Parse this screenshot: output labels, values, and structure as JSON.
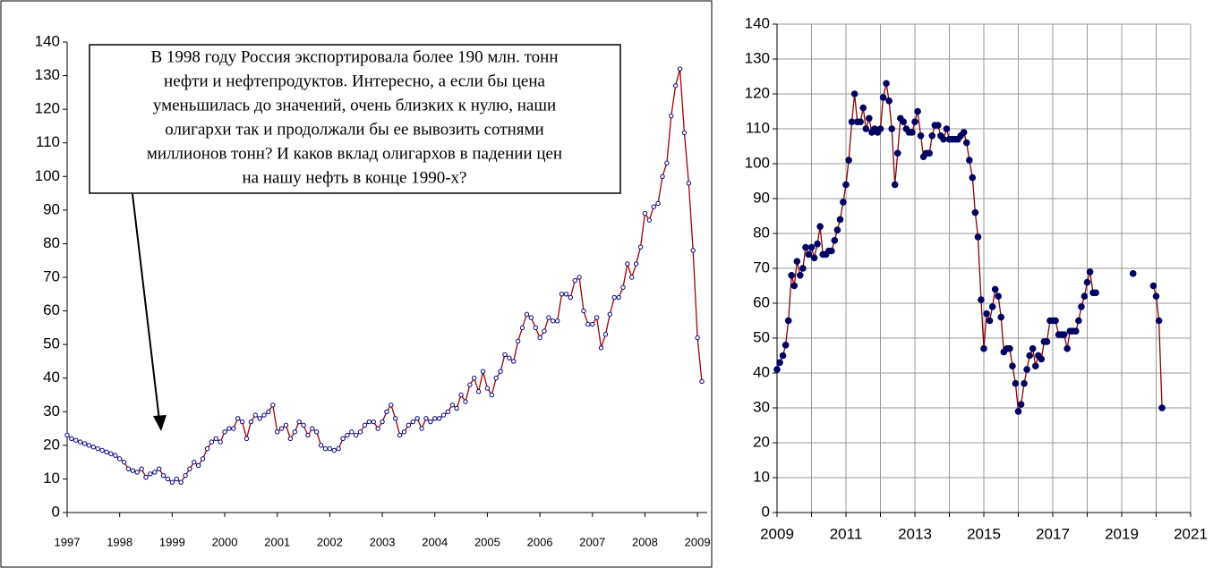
{
  "chart_data": [
    {
      "type": "line",
      "categories": [
        "1997",
        null,
        null,
        null,
        null,
        null,
        null,
        null,
        null,
        null,
        null,
        null,
        "1998",
        null,
        null,
        null,
        null,
        null,
        null,
        null,
        null,
        null,
        null,
        null,
        "1999",
        null,
        null,
        null,
        null,
        null,
        null,
        null,
        null,
        null,
        null,
        null,
        "2000",
        null,
        null,
        null,
        null,
        null,
        null,
        null,
        null,
        null,
        null,
        null,
        "2001",
        null,
        null,
        null,
        null,
        null,
        null,
        null,
        null,
        null,
        null,
        null,
        "2002",
        null,
        null,
        null,
        null,
        null,
        null,
        null,
        null,
        null,
        null,
        null,
        "2003",
        null,
        null,
        null,
        null,
        null,
        null,
        null,
        null,
        null,
        null,
        null,
        "2004",
        null,
        null,
        null,
        null,
        null,
        null,
        null,
        null,
        null,
        null,
        null,
        "2005",
        null,
        null,
        null,
        null,
        null,
        null,
        null,
        null,
        null,
        null,
        null,
        "2006",
        null,
        null,
        null,
        null,
        null,
        null,
        null,
        null,
        null,
        null,
        null,
        "2007",
        null,
        null,
        null,
        null,
        null,
        null,
        null,
        null,
        null,
        null,
        null,
        "2008",
        null,
        null,
        null,
        null,
        null,
        null,
        null,
        null,
        null,
        null,
        null,
        "2009",
        null
      ],
      "values": [
        23,
        22,
        21.5,
        21,
        20.5,
        20,
        19.5,
        19,
        18.5,
        18,
        17.5,
        17,
        16,
        15,
        13,
        12.5,
        12,
        13,
        10.5,
        11.5,
        12,
        13,
        11,
        10,
        9,
        10,
        9,
        11,
        13,
        15,
        14,
        16,
        19,
        21,
        22,
        21,
        24,
        25,
        25,
        28,
        27,
        22,
        27,
        29,
        28,
        29,
        30,
        32,
        24,
        25,
        26,
        22,
        24,
        27,
        26,
        23,
        25,
        24,
        20,
        19,
        19,
        18.5,
        19,
        22,
        23,
        24,
        23,
        24,
        26,
        27,
        27,
        25,
        27,
        30,
        32,
        28,
        23,
        24,
        26,
        27,
        28,
        25,
        28,
        27,
        28,
        28,
        29,
        30,
        32,
        31,
        35,
        33,
        38,
        40,
        36,
        42,
        37,
        35,
        40,
        42,
        47,
        46,
        45,
        51,
        55,
        59,
        58,
        55,
        52,
        54,
        58,
        57,
        57,
        65,
        65,
        64,
        69,
        70,
        60,
        56,
        56,
        58,
        49,
        53,
        59,
        64,
        64,
        67,
        74,
        70,
        74,
        79,
        89,
        87,
        91,
        92,
        100,
        104,
        118,
        127,
        132,
        113,
        98,
        78,
        52,
        39
      ],
      "color": "#a00000",
      "marker": "hollow",
      "marker_color": "#000080",
      "ylim": [
        0,
        140
      ],
      "yticks": [
        0,
        10,
        20,
        30,
        40,
        50,
        60,
        70,
        80,
        90,
        100,
        110,
        120,
        130,
        140
      ],
      "grid": false,
      "annotation": [
        "В 1998 году Россия экспортировала более 190 млн. тонн",
        "нефти и нефтепродуктов. Интересно, а если бы цена",
        "уменьшилась до значений, очень близких к нулю, наши",
        "олигархи так и продолжали бы ее вывозить сотнями",
        "миллионов тонн? И каков вклад олигархов в падении цен",
        "на нашу нефть в конце 1990-х?"
      ]
    },
    {
      "type": "line",
      "x": [
        2009.0,
        2009.08,
        2009.17,
        2009.25,
        2009.33,
        2009.42,
        2009.5,
        2009.58,
        2009.67,
        2009.75,
        2009.83,
        2009.92,
        2010.0,
        2010.08,
        2010.17,
        2010.25,
        2010.33,
        2010.42,
        2010.5,
        2010.58,
        2010.67,
        2010.75,
        2010.83,
        2010.92,
        2011.0,
        2011.08,
        2011.17,
        2011.25,
        2011.33,
        2011.42,
        2011.5,
        2011.58,
        2011.67,
        2011.75,
        2011.83,
        2011.92,
        2012.0,
        2012.08,
        2012.17,
        2012.25,
        2012.33,
        2012.42,
        2012.5,
        2012.58,
        2012.67,
        2012.75,
        2012.83,
        2012.92,
        2013.0,
        2013.08,
        2013.17,
        2013.25,
        2013.33,
        2013.42,
        2013.5,
        2013.58,
        2013.67,
        2013.75,
        2013.83,
        2013.92,
        2014.0,
        2014.08,
        2014.17,
        2014.25,
        2014.33,
        2014.42,
        2014.5,
        2014.58,
        2014.67,
        2014.75,
        2014.83,
        2014.92,
        2015.0,
        2015.08,
        2015.17,
        2015.25,
        2015.33,
        2015.42,
        2015.5,
        2015.58,
        2015.67,
        2015.75,
        2015.83,
        2015.92,
        2016.0,
        2016.08,
        2016.17,
        2016.25,
        2016.33,
        2016.42,
        2016.5,
        2016.58,
        2016.67,
        2016.75,
        2016.83,
        2016.92,
        2017.0,
        2017.08,
        2017.17,
        2017.25,
        2017.33,
        2017.42,
        2017.5,
        2017.58,
        2017.67,
        2017.75,
        2017.83,
        2017.92,
        2018.0,
        2018.08,
        2018.17,
        2018.25,
        2018.5,
        2019.33,
        2019.6,
        2019.92,
        2020.0,
        2020.08,
        2020.17
      ],
      "values": [
        41,
        43,
        45,
        48,
        55,
        68,
        65,
        72,
        68,
        70,
        76,
        74,
        76,
        73,
        77,
        82,
        74,
        74,
        75,
        75,
        78,
        81,
        84,
        89,
        94,
        101,
        112,
        120,
        112,
        112,
        116,
        110,
        113,
        109,
        110,
        109,
        110,
        119,
        123,
        118,
        110,
        94,
        103,
        113,
        112,
        110,
        109,
        109,
        112,
        115,
        108,
        102,
        103,
        103,
        108,
        111,
        111,
        108,
        107,
        110,
        107,
        107,
        107,
        107,
        108,
        109,
        106,
        101,
        96,
        86,
        79,
        61,
        47,
        57,
        55,
        59,
        64,
        62,
        56,
        46,
        47,
        47,
        42,
        37,
        29,
        31,
        37,
        41,
        45,
        47,
        42,
        45,
        44,
        49,
        49,
        55,
        55,
        55,
        51,
        51,
        51,
        47,
        52,
        52,
        52,
        55,
        59,
        62,
        66,
        69,
        63,
        63,
        null,
        68.5,
        null,
        65,
        62,
        55,
        30
      ],
      "color": "#8b0000",
      "marker": "filled",
      "marker_color": "#000060",
      "xlim": [
        2009,
        2021
      ],
      "xticks": [
        2009,
        2011,
        2013,
        2015,
        2017,
        2019,
        2021
      ],
      "xminorticks": [
        2010,
        2012,
        2014,
        2016,
        2018,
        2020
      ],
      "ylim": [
        0,
        140
      ],
      "yticks": [
        0,
        10,
        20,
        30,
        40,
        50,
        60,
        70,
        80,
        90,
        100,
        110,
        120,
        130,
        140
      ],
      "grid": true
    }
  ]
}
